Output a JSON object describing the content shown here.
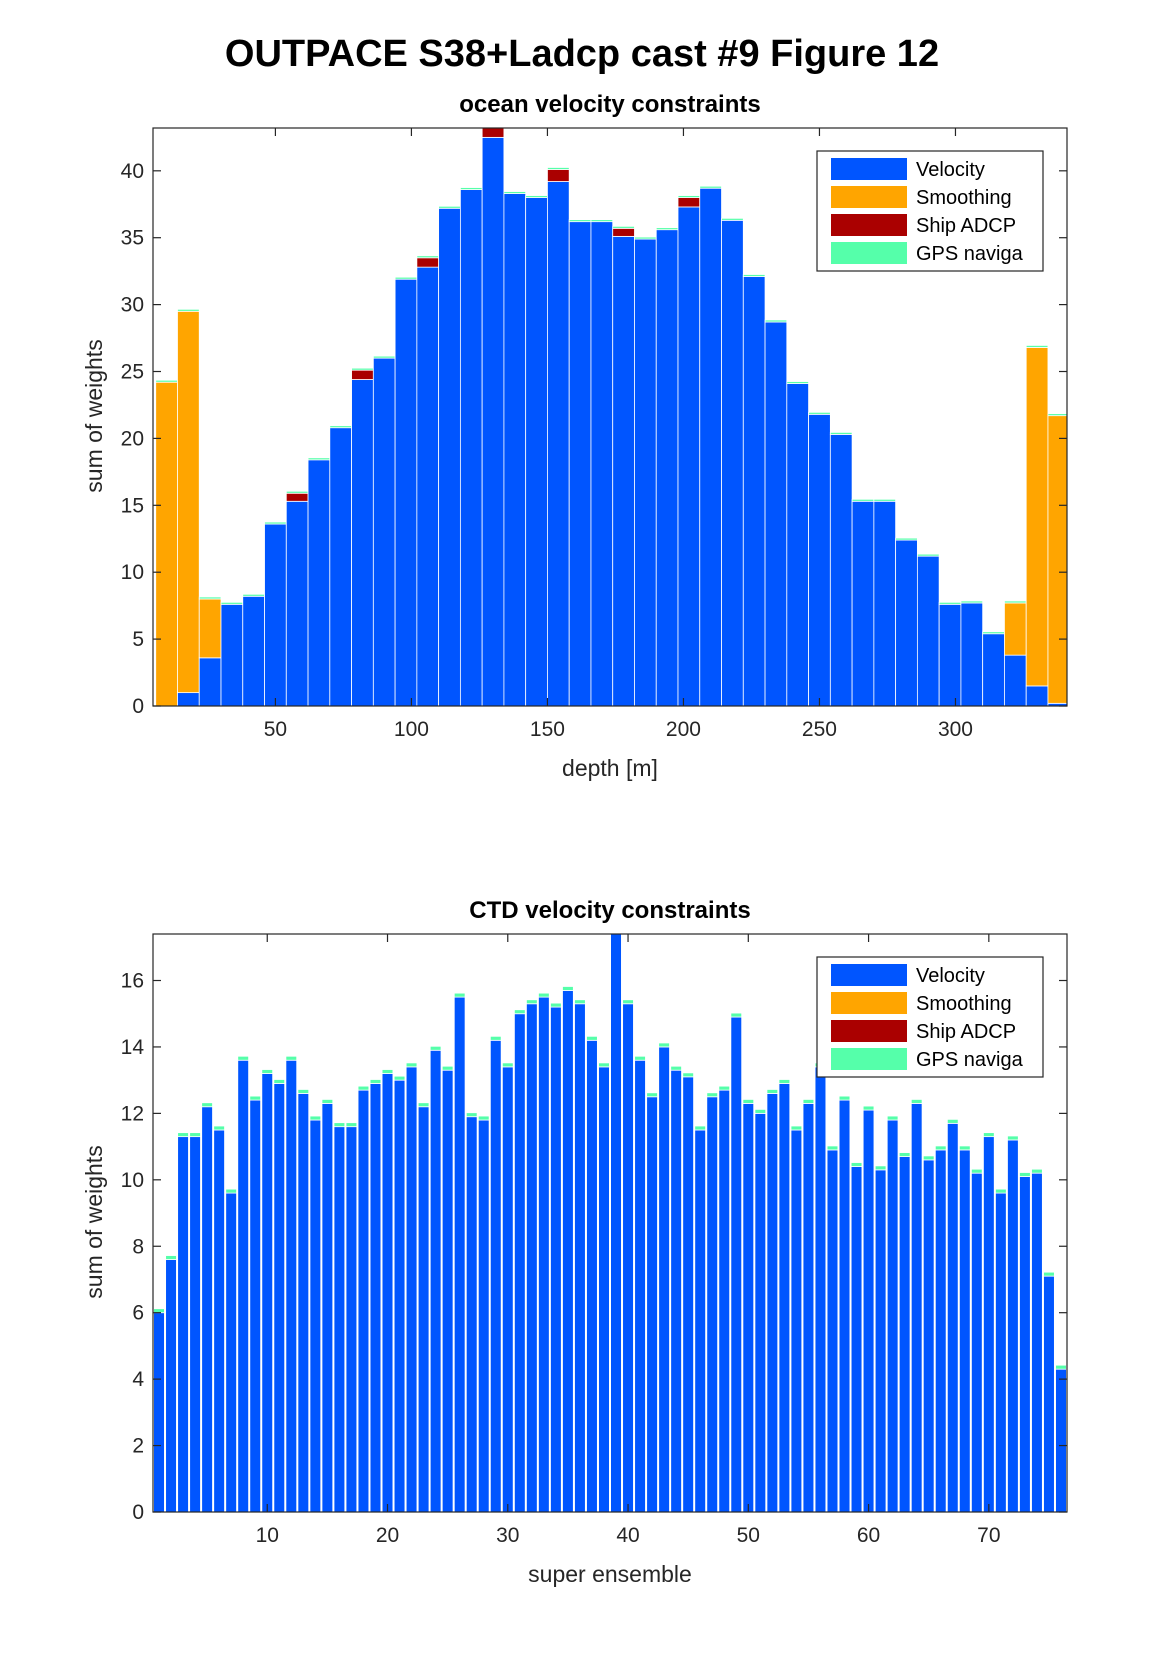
{
  "figure": {
    "title": "OUTPACE S38+Ladcp cast #9  Figure 12",
    "legend": [
      {
        "label": "Velocity",
        "color": "#0055ff"
      },
      {
        "label": "Smoothing",
        "color": "#ffa500"
      },
      {
        "label": "Ship ADCP",
        "color": "#aa0000"
      },
      {
        "label": "GPS naviga",
        "color": "#55ffaa"
      }
    ]
  },
  "chart_data": [
    {
      "type": "bar",
      "stacked": true,
      "title": "ocean velocity constraints",
      "xlabel": "depth [m]",
      "ylabel": "sum of weights",
      "xlim": [
        5,
        341
      ],
      "ylim": [
        0,
        43.2
      ],
      "xticks": [
        50,
        100,
        150,
        200,
        250,
        300
      ],
      "yticks": [
        0,
        5,
        10,
        15,
        20,
        25,
        30,
        35,
        40
      ],
      "legend_position": "top-right",
      "bar_width": 8,
      "x": [
        10,
        18,
        26,
        34,
        42,
        50,
        58,
        66,
        74,
        82,
        90,
        98,
        106,
        114,
        122,
        130,
        138,
        146,
        154,
        162,
        170,
        178,
        186,
        194,
        202,
        210,
        218,
        226,
        234,
        242,
        250,
        258,
        266,
        274,
        282,
        290,
        298,
        306,
        314,
        322,
        330,
        338
      ],
      "series": [
        {
          "name": "Velocity",
          "values": [
            0,
            1.0,
            3.6,
            7.6,
            8.2,
            13.6,
            15.3,
            18.4,
            20.8,
            24.4,
            26.0,
            31.9,
            32.8,
            37.2,
            38.6,
            42.5,
            38.3,
            38.0,
            39.2,
            36.2,
            36.2,
            35.1,
            34.9,
            35.6,
            37.3,
            38.7,
            36.3,
            32.1,
            28.7,
            24.1,
            21.8,
            20.3,
            15.3,
            15.3,
            12.4,
            11.2,
            7.6,
            7.7,
            5.4,
            3.8,
            1.5,
            0.2
          ]
        },
        {
          "name": "Smoothing",
          "values": [
            24.2,
            28.5,
            4.4,
            0,
            0,
            0,
            0,
            0,
            0,
            0,
            0,
            0,
            0,
            0,
            0,
            0,
            0,
            0,
            0,
            0,
            0,
            0,
            0,
            0,
            0,
            0,
            0,
            0,
            0,
            0,
            0,
            0,
            0,
            0,
            0,
            0,
            0,
            0,
            0,
            3.9,
            25.3,
            21.5
          ]
        },
        {
          "name": "Ship ADCP",
          "values": [
            0,
            0,
            0,
            0,
            0,
            0,
            0.6,
            0,
            0,
            0.7,
            0,
            0,
            0.7,
            0,
            0,
            0.7,
            0,
            0,
            0.9,
            0,
            0,
            0.6,
            0,
            0,
            0.7,
            0,
            0,
            0,
            0,
            0,
            0,
            0,
            0,
            0,
            0,
            0,
            0,
            0,
            0,
            0,
            0,
            0
          ]
        },
        {
          "name": "GPS naviga",
          "values": [
            0.15,
            0.15,
            0.15,
            0.15,
            0.15,
            0.15,
            0.15,
            0.15,
            0.15,
            0.15,
            0.15,
            0.15,
            0.15,
            0.15,
            0.15,
            0.15,
            0.15,
            0.15,
            0.15,
            0.15,
            0.15,
            0.15,
            0.15,
            0.15,
            0.15,
            0.15,
            0.15,
            0.15,
            0.15,
            0.15,
            0.15,
            0.15,
            0.15,
            0.15,
            0.15,
            0.15,
            0.15,
            0.15,
            0.15,
            0.15,
            0.15,
            0.15
          ]
        }
      ]
    },
    {
      "type": "bar",
      "stacked": true,
      "title": "CTD velocity constraints",
      "xlabel": "super ensemble",
      "ylabel": "sum of weights",
      "xlim": [
        0.5,
        76.5
      ],
      "ylim": [
        0,
        17.4
      ],
      "xticks": [
        10,
        20,
        30,
        40,
        50,
        60,
        70
      ],
      "yticks": [
        0,
        2,
        4,
        6,
        8,
        10,
        12,
        14,
        16
      ],
      "legend_position": "top-right",
      "bar_width": 0.9,
      "x": [
        1,
        2,
        3,
        4,
        5,
        6,
        7,
        8,
        9,
        10,
        11,
        12,
        13,
        14,
        15,
        16,
        17,
        18,
        19,
        20,
        21,
        22,
        23,
        24,
        25,
        26,
        27,
        28,
        29,
        30,
        31,
        32,
        33,
        34,
        35,
        36,
        37,
        38,
        39,
        40,
        41,
        42,
        43,
        44,
        45,
        46,
        47,
        48,
        49,
        50,
        51,
        52,
        53,
        54,
        55,
        56,
        57,
        58,
        59,
        60,
        61,
        62,
        63,
        64,
        65,
        66,
        67,
        68,
        69,
        70,
        71,
        72,
        73,
        74,
        75,
        76
      ],
      "series": [
        {
          "name": "Velocity",
          "values": [
            6.0,
            7.6,
            11.3,
            11.3,
            12.2,
            11.5,
            9.6,
            13.6,
            12.4,
            13.2,
            12.9,
            13.6,
            12.6,
            11.8,
            12.3,
            11.6,
            11.6,
            12.7,
            12.9,
            13.2,
            13.0,
            13.4,
            12.2,
            13.9,
            13.3,
            15.5,
            11.9,
            11.8,
            14.2,
            13.4,
            15.0,
            15.3,
            15.5,
            15.2,
            15.7,
            15.3,
            14.2,
            13.4,
            17.4,
            15.3,
            13.6,
            12.5,
            14.0,
            13.3,
            13.1,
            11.5,
            12.5,
            12.7,
            14.9,
            12.3,
            12.0,
            12.6,
            12.9,
            11.5,
            12.3,
            13.4,
            10.9,
            12.4,
            10.4,
            12.1,
            10.3,
            11.8,
            10.7,
            12.3,
            10.6,
            10.9,
            11.7,
            10.9,
            10.2,
            11.3,
            9.6,
            11.2,
            10.1,
            10.2,
            7.1,
            4.3
          ]
        },
        {
          "name": "Smoothing",
          "values": [
            0,
            0,
            0,
            0,
            0,
            0,
            0,
            0,
            0,
            0,
            0,
            0,
            0,
            0,
            0,
            0,
            0,
            0,
            0,
            0,
            0,
            0,
            0,
            0,
            0,
            0,
            0,
            0,
            0,
            0,
            0,
            0,
            0,
            0,
            0,
            0,
            0,
            0,
            0,
            0,
            0,
            0,
            0,
            0,
            0,
            0,
            0,
            0,
            0,
            0,
            0,
            0,
            0,
            0,
            0,
            0,
            0,
            0,
            0,
            0,
            0,
            0,
            0,
            0,
            0,
            0,
            0,
            0,
            0,
            0,
            0,
            0,
            0,
            0,
            0,
            0
          ]
        },
        {
          "name": "Ship ADCP",
          "values": [
            0,
            0,
            0,
            0,
            0,
            0,
            0,
            0,
            0,
            0,
            0,
            0,
            0,
            0,
            0,
            0,
            0,
            0,
            0,
            0,
            0,
            0,
            0,
            0,
            0,
            0,
            0,
            0,
            0,
            0,
            0,
            0,
            0,
            0,
            0,
            0,
            0,
            0,
            0,
            0,
            0,
            0,
            0,
            0,
            0,
            0,
            0,
            0,
            0,
            0,
            0,
            0,
            0,
            0,
            0,
            0,
            0,
            0,
            0,
            0,
            0,
            0,
            0,
            0,
            0,
            0,
            0,
            0,
            0,
            0,
            0,
            0,
            0,
            0,
            0,
            0
          ]
        },
        {
          "name": "GPS naviga",
          "values": [
            0.12,
            0.12,
            0.12,
            0.12,
            0.12,
            0.12,
            0.12,
            0.12,
            0.12,
            0.12,
            0.12,
            0.12,
            0.12,
            0.12,
            0.12,
            0.12,
            0.12,
            0.12,
            0.12,
            0.12,
            0.12,
            0.12,
            0.12,
            0.12,
            0.12,
            0.12,
            0.12,
            0.12,
            0.12,
            0.12,
            0.12,
            0.12,
            0.12,
            0.12,
            0.12,
            0.12,
            0.12,
            0.12,
            0.12,
            0.12,
            0.12,
            0.12,
            0.12,
            0.12,
            0.12,
            0.12,
            0.12,
            0.12,
            0.12,
            0.12,
            0.12,
            0.12,
            0.12,
            0.12,
            0.12,
            0.12,
            0.12,
            0.12,
            0.12,
            0.12,
            0.12,
            0.12,
            0.12,
            0.12,
            0.12,
            0.12,
            0.12,
            0.12,
            0.12,
            0.12,
            0.12,
            0.12,
            0.12,
            0.12,
            0.12,
            0.12
          ]
        }
      ]
    }
  ]
}
